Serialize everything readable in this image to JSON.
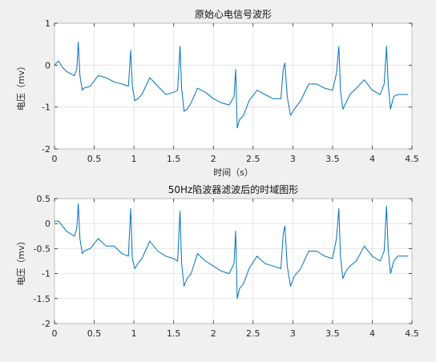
{
  "figure": {
    "background": "#f0f0f0"
  },
  "chart_data": [
    {
      "type": "line",
      "title": "原始心电信号波形",
      "xlabel": "时间（s）",
      "ylabel": "电压（mv）",
      "xlim": [
        0,
        4.5
      ],
      "ylim": [
        -2,
        1
      ],
      "xticks": [
        0,
        0.5,
        1,
        1.5,
        2,
        2.5,
        3,
        3.5,
        4,
        4.5
      ],
      "xtick_labels": [
        "0",
        "0.5",
        "1",
        "1.5",
        "2",
        "2.5",
        "3",
        "3.5",
        "4",
        "4.5"
      ],
      "yticks": [
        1,
        0,
        -1,
        -2
      ],
      "ytick_labels": [
        "1",
        "0",
        "-1",
        "-2"
      ],
      "grid": true,
      "color": "#0072bd",
      "series": [
        {
          "x": [
            0,
            0.05,
            0.1,
            0.15,
            0.2,
            0.25,
            0.28,
            0.3,
            0.32,
            0.35,
            0.37,
            0.45,
            0.55,
            0.65,
            0.75,
            0.85,
            0.93,
            0.96,
            0.98,
            1.01,
            1.05,
            1.1,
            1.2,
            1.3,
            1.4,
            1.5,
            1.55,
            1.58,
            1.6,
            1.63,
            1.67,
            1.72,
            1.8,
            1.9,
            2.0,
            2.1,
            2.2,
            2.26,
            2.28,
            2.3,
            2.33,
            2.38,
            2.45,
            2.55,
            2.65,
            2.75,
            2.85,
            2.88,
            2.9,
            2.93,
            2.97,
            3.02,
            3.1,
            3.2,
            3.3,
            3.4,
            3.5,
            3.55,
            3.58,
            3.6,
            3.63,
            3.67,
            3.72,
            3.8,
            3.9,
            4.0,
            4.1,
            4.15,
            4.18,
            4.2,
            4.23,
            4.27,
            4.32,
            4.4,
            4.45
          ],
          "y": [
            0,
            0.1,
            -0.05,
            -0.15,
            -0.2,
            -0.25,
            -0.1,
            0.55,
            -0.25,
            -0.6,
            -0.55,
            -0.5,
            -0.25,
            -0.3,
            -0.4,
            -0.45,
            -0.5,
            0.35,
            -0.5,
            -0.85,
            -0.8,
            -0.7,
            -0.3,
            -0.5,
            -0.7,
            -0.65,
            -0.6,
            0.45,
            -0.55,
            -1.1,
            -1.05,
            -0.9,
            -0.55,
            -0.65,
            -0.8,
            -0.9,
            -0.95,
            -0.75,
            -0.1,
            -1.5,
            -1.3,
            -1.2,
            -0.85,
            -0.6,
            -0.7,
            -0.8,
            -0.8,
            -0.1,
            0.05,
            -0.75,
            -1.2,
            -1.05,
            -0.85,
            -0.45,
            -0.45,
            -0.55,
            -0.6,
            -0.2,
            0.45,
            -0.6,
            -1.05,
            -0.9,
            -0.7,
            -0.55,
            -0.35,
            -0.6,
            -0.7,
            -0.45,
            0.45,
            -0.45,
            -1.05,
            -0.75,
            -0.7,
            -0.7,
            -0.7
          ]
        }
      ]
    },
    {
      "type": "line",
      "title": "50Hz陷波器滤波后的时域图形",
      "xlabel": "",
      "ylabel": "电压（mv）",
      "xlim": [
        0,
        4.5
      ],
      "ylim": [
        -2,
        0.5
      ],
      "xticks": [
        0,
        0.5,
        1,
        1.5,
        2,
        2.5,
        3,
        3.5,
        4,
        4.5
      ],
      "xtick_labels": [
        "0",
        "0.5",
        "1",
        "1.5",
        "2",
        "2.5",
        "3",
        "3.5",
        "4",
        "4.5"
      ],
      "yticks": [
        0.5,
        0,
        -0.5,
        -1,
        -1.5,
        -2
      ],
      "ytick_labels": [
        "0.5",
        "0",
        "-0.5",
        "-1",
        "-1.5",
        "-2"
      ],
      "grid": true,
      "color": "#0072bd",
      "series": [
        {
          "x": [
            0,
            0.05,
            0.1,
            0.15,
            0.2,
            0.25,
            0.28,
            0.3,
            0.32,
            0.35,
            0.37,
            0.45,
            0.55,
            0.65,
            0.75,
            0.85,
            0.93,
            0.96,
            0.98,
            1.01,
            1.05,
            1.1,
            1.2,
            1.3,
            1.4,
            1.5,
            1.55,
            1.58,
            1.6,
            1.63,
            1.67,
            1.72,
            1.8,
            1.9,
            2.0,
            2.1,
            2.2,
            2.26,
            2.28,
            2.3,
            2.33,
            2.38,
            2.45,
            2.55,
            2.65,
            2.75,
            2.85,
            2.88,
            2.9,
            2.93,
            2.97,
            3.02,
            3.1,
            3.2,
            3.3,
            3.4,
            3.5,
            3.55,
            3.58,
            3.6,
            3.63,
            3.67,
            3.72,
            3.8,
            3.9,
            4.0,
            4.1,
            4.15,
            4.18,
            4.2,
            4.23,
            4.27,
            4.32,
            4.4,
            4.45
          ],
          "y": [
            0.05,
            0.05,
            -0.05,
            -0.15,
            -0.2,
            -0.25,
            -0.1,
            0.4,
            -0.3,
            -0.6,
            -0.55,
            -0.5,
            -0.3,
            -0.45,
            -0.45,
            -0.6,
            -0.65,
            0.3,
            -0.7,
            -0.9,
            -0.8,
            -0.7,
            -0.35,
            -0.55,
            -0.65,
            -0.7,
            -0.75,
            0.25,
            -0.8,
            -1.25,
            -1.1,
            -1.0,
            -0.6,
            -0.75,
            -0.85,
            -0.95,
            -1.0,
            -0.8,
            -0.15,
            -1.5,
            -1.3,
            -1.2,
            -0.9,
            -0.65,
            -0.8,
            -0.85,
            -0.9,
            -0.2,
            -0.05,
            -0.85,
            -1.25,
            -1.05,
            -0.9,
            -0.55,
            -0.55,
            -0.65,
            -0.7,
            -0.3,
            0.3,
            -0.65,
            -1.1,
            -0.95,
            -0.85,
            -0.75,
            -0.45,
            -0.65,
            -0.75,
            -0.55,
            0.35,
            -0.5,
            -1.0,
            -0.75,
            -0.65,
            -0.65,
            -0.65
          ]
        }
      ]
    }
  ]
}
